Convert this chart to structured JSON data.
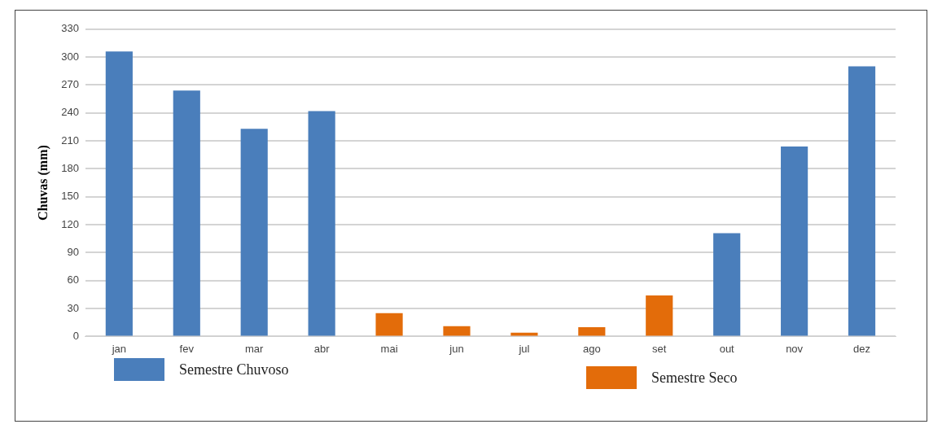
{
  "chart_data": {
    "type": "bar",
    "ylabel": "Chuvas (mm)",
    "categories": [
      "jan",
      "fev",
      "mar",
      "abr",
      "mai",
      "jun",
      "jul",
      "ago",
      "set",
      "out",
      "nov",
      "dez"
    ],
    "series": [
      {
        "name": "Semestre Chuvoso",
        "color": "#4a7ebb",
        "values": [
          306,
          264,
          223,
          242,
          null,
          null,
          null,
          null,
          null,
          111,
          204,
          290
        ]
      },
      {
        "name": "Semestre Seco",
        "color": "#e36c0a",
        "values": [
          null,
          null,
          null,
          null,
          25,
          11,
          4,
          10,
          44,
          null,
          null,
          null
        ]
      }
    ],
    "ylim": [
      0,
      330
    ],
    "yticks": [
      0,
      30,
      60,
      90,
      120,
      150,
      180,
      210,
      240,
      270,
      300,
      330
    ],
    "grid": "y",
    "legend": "bottom"
  }
}
